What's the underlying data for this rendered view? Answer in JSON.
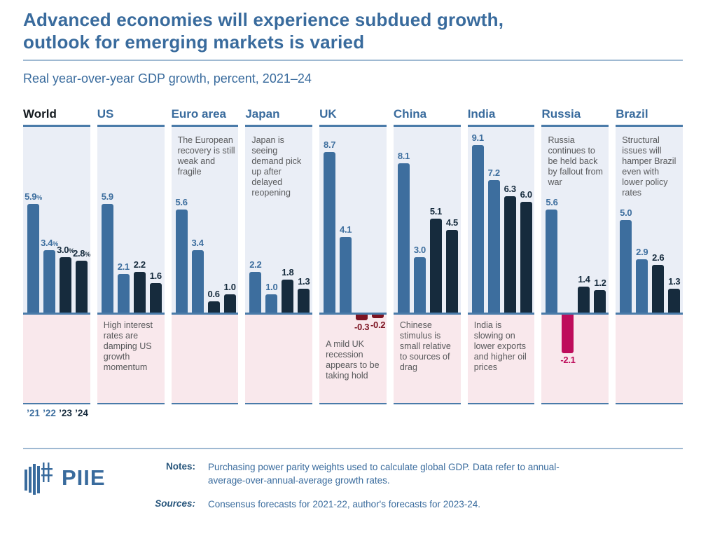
{
  "title": "Advanced economies will experience subdued growth,\noutlook for emerging markets is varied",
  "subtitle": "Real year-over-year GDP growth, percent, 2021–24",
  "x_axis": {
    "year_labels": [
      "’21",
      "’22",
      "’23",
      "’24"
    ]
  },
  "chart_data": {
    "type": "bar",
    "unit": "percent, real year-over-year GDP growth",
    "categories": [
      "2021",
      "2022",
      "2023",
      "2024"
    ],
    "ylim_hint": [
      -5,
      10
    ],
    "legend": "none",
    "panels": [
      {
        "name": "World",
        "emphasis": true,
        "values": [
          5.9,
          3.4,
          3.0,
          2.8
        ],
        "labels": [
          "5.9%",
          "3.4%",
          "3.0%",
          "2.8%"
        ],
        "note": "",
        "note_position": "none"
      },
      {
        "name": "US",
        "values": [
          5.9,
          2.1,
          2.2,
          1.6
        ],
        "labels": [
          "5.9",
          "2.1",
          "2.2",
          "1.6"
        ],
        "note": "High interest rates are damping US growth momentum",
        "note_position": "bottom"
      },
      {
        "name": "Euro area",
        "values": [
          5.6,
          3.4,
          0.6,
          1.0
        ],
        "labels": [
          "5.6",
          "3.4",
          "0.6",
          "1.0"
        ],
        "note": "The European recovery is still weak and fragile",
        "note_position": "top"
      },
      {
        "name": "Japan",
        "values": [
          2.2,
          1.0,
          1.8,
          1.3
        ],
        "labels": [
          "2.2",
          "1.0",
          "1.8",
          "1.3"
        ],
        "note": "Japan is seeing demand pick up after delayed reopening",
        "note_position": "top"
      },
      {
        "name": "UK",
        "values": [
          8.7,
          4.1,
          -0.3,
          -0.2
        ],
        "labels": [
          "8.7",
          "4.1",
          "-0.3",
          "-0.2"
        ],
        "note": "A mild UK recession appears to be taking hold",
        "note_position": "bottom",
        "negative_color": "#7C1321"
      },
      {
        "name": "China",
        "values": [
          8.1,
          3.0,
          5.1,
          4.5
        ],
        "labels": [
          "8.1",
          "3.0",
          "5.1",
          "4.5"
        ],
        "note": "Chinese stimulus is small relative to sources of drag",
        "note_position": "bottom"
      },
      {
        "name": "India",
        "values": [
          9.1,
          7.2,
          6.3,
          6.0
        ],
        "labels": [
          "9.1",
          "7.2",
          "6.3",
          "6.0"
        ],
        "note": "India is slowing on lower exports and higher oil prices",
        "note_position": "bottom"
      },
      {
        "name": "Russia",
        "values": [
          5.6,
          -2.1,
          1.4,
          1.2
        ],
        "labels": [
          "5.6",
          "-2.1",
          "1.4",
          "1.2"
        ],
        "note": "Russia continues to be held back by fallout from war",
        "note_position": "top",
        "negative_color": "#BE0D5B"
      },
      {
        "name": "Brazil",
        "values": [
          5.0,
          2.9,
          2.6,
          1.3
        ],
        "labels": [
          "5.0",
          "2.9",
          "2.6",
          "1.3"
        ],
        "note": "Structural issues will hamper Brazil even with lower policy rates",
        "note_position": "top"
      }
    ]
  },
  "colors": {
    "bar_2021_22": "#3D6E9E",
    "bar_2023_24": "#162B3D",
    "negative_uk": "#7C1321",
    "negative_russia": "#BE0D5B",
    "panel_bg_positive": "#EAEEF6",
    "panel_bg_negative": "#F9E8EC",
    "axis_line": "#4A7BA9",
    "title_blue": "#396B9D",
    "annotation_gray": "#58595B",
    "world_header_dark": "#141A1F"
  },
  "footer": {
    "logo_text": "PIIE",
    "notes_label": "Notes:",
    "notes_text": "Purchasing power parity weights used to calculate global GDP. Data refer to annual-average-over-annual-average growth rates.",
    "sources_label": "Sources:",
    "sources_text": "Consensus forecasts for 2021-22, author's forecasts for 2023-24."
  }
}
